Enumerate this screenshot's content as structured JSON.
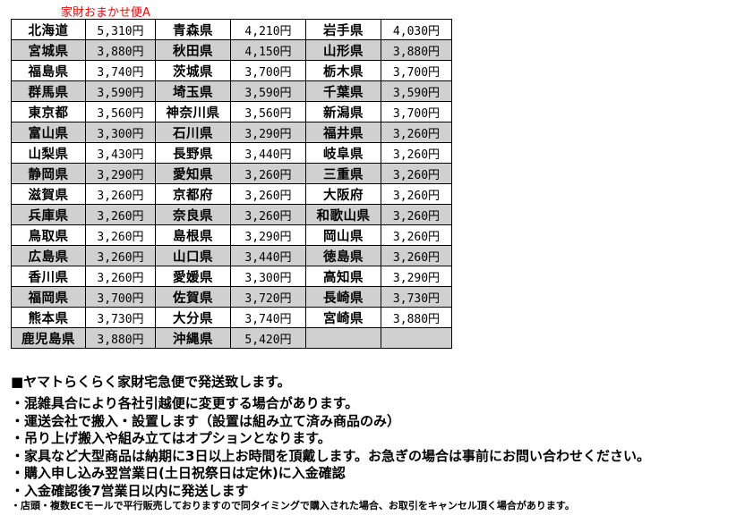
{
  "title": "家財おまかせ便A",
  "colors": {
    "title": "#ff0000",
    "row_alt": "#d0d0d0"
  },
  "rows": [
    [
      [
        "北海道",
        "5,310円"
      ],
      [
        "青森県",
        "4,210円"
      ],
      [
        "岩手県",
        "4,030円"
      ]
    ],
    [
      [
        "宮城県",
        "3,880円"
      ],
      [
        "秋田県",
        "4,150円"
      ],
      [
        "山形県",
        "3,880円"
      ]
    ],
    [
      [
        "福島県",
        "3,740円"
      ],
      [
        "茨城県",
        "3,700円"
      ],
      [
        "栃木県",
        "3,700円"
      ]
    ],
    [
      [
        "群馬県",
        "3,590円"
      ],
      [
        "埼玉県",
        "3,590円"
      ],
      [
        "千葉県",
        "3,590円"
      ]
    ],
    [
      [
        "東京都",
        "3,560円"
      ],
      [
        "神奈川県",
        "3,560円"
      ],
      [
        "新潟県",
        "3,700円"
      ]
    ],
    [
      [
        "富山県",
        "3,300円"
      ],
      [
        "石川県",
        "3,290円"
      ],
      [
        "福井県",
        "3,260円"
      ]
    ],
    [
      [
        "山梨県",
        "3,430円"
      ],
      [
        "長野県",
        "3,440円"
      ],
      [
        "岐阜県",
        "3,260円"
      ]
    ],
    [
      [
        "静岡県",
        "3,290円"
      ],
      [
        "愛知県",
        "3,260円"
      ],
      [
        "三重県",
        "3,260円"
      ]
    ],
    [
      [
        "滋賀県",
        "3,260円"
      ],
      [
        "京都府",
        "3,260円"
      ],
      [
        "大阪府",
        "3,260円"
      ]
    ],
    [
      [
        "兵庫県",
        "3,260円"
      ],
      [
        "奈良県",
        "3,260円"
      ],
      [
        "和歌山県",
        "3,260円"
      ]
    ],
    [
      [
        "鳥取県",
        "3,260円"
      ],
      [
        "島根県",
        "3,290円"
      ],
      [
        "岡山県",
        "3,260円"
      ]
    ],
    [
      [
        "広島県",
        "3,260円"
      ],
      [
        "山口県",
        "3,440円"
      ],
      [
        "徳島県",
        "3,260円"
      ]
    ],
    [
      [
        "香川県",
        "3,260円"
      ],
      [
        "愛媛県",
        "3,300円"
      ],
      [
        "高知県",
        "3,290円"
      ]
    ],
    [
      [
        "福岡県",
        "3,700円"
      ],
      [
        "佐賀県",
        "3,720円"
      ],
      [
        "長崎県",
        "3,730円"
      ]
    ],
    [
      [
        "熊本県",
        "3,730円"
      ],
      [
        "大分県",
        "3,740円"
      ],
      [
        "宮崎県",
        "3,880円"
      ]
    ],
    [
      [
        "鹿児島県",
        "3,880円"
      ],
      [
        "沖縄県",
        "5,420円"
      ],
      [
        "",
        ""
      ]
    ]
  ],
  "heading": "■ヤマトらくらく家財宅急便で発送致します。",
  "notes": [
    "・混雑具合により各社引越便に変更する場合があります。",
    "・運送会社で搬入・設置します（設置は組み立て済み商品のみ）",
    "・吊り上げ搬入や組み立てはオプションとなります。",
    "・家具など大型商品は納期に3日以上お時間を頂戴します。お急ぎの場合は事前にお問い合わせください。",
    "・購入申し込み翌営業日(土日祝祭日は定休)に入金確認",
    "・入金確認後7営業日以内に発送します"
  ],
  "footnote": "・店頭・複数ECモールで平行販売しておりますので同タイミングで購入された場合、お取引をキャンセル頂く場合があります。"
}
